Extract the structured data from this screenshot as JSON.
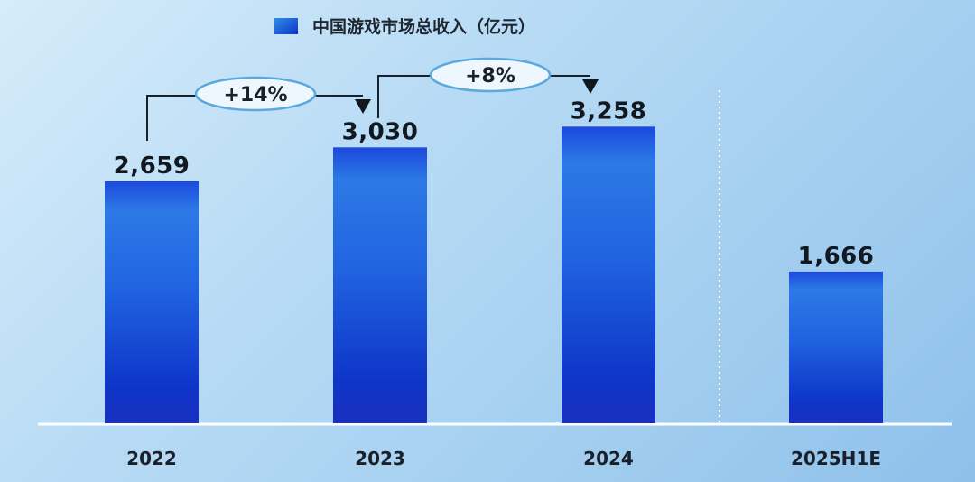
{
  "chart_data": {
    "type": "bar",
    "title": "",
    "xlabel": "",
    "ylabel": "",
    "categories": [
      "2022",
      "2023",
      "2024",
      "2025H1E"
    ],
    "series": [
      {
        "name": "中国游戏市场总收入（亿元）",
        "values": [
          2659,
          3030,
          3258,
          1666
        ],
        "value_labels": [
          "2,659",
          "3,030",
          "3,258",
          "1,666"
        ]
      }
    ],
    "ylim": [
      0,
      3400
    ],
    "grid": false,
    "legend_position": "top-center",
    "separator_before": "2025H1E",
    "annotations": [
      {
        "type": "growth",
        "from": "2022",
        "to": "2023",
        "label": "+14%"
      },
      {
        "type": "growth",
        "from": "2023",
        "to": "2024",
        "label": "+8%"
      }
    ],
    "colors": {
      "bar_top": "#1e4fe0",
      "bar_bottom": "#0c2fc4",
      "bar_mid": "#2f7de8",
      "callout_border": "#5aa8dc",
      "callout_fill": "#eef7fd"
    }
  }
}
